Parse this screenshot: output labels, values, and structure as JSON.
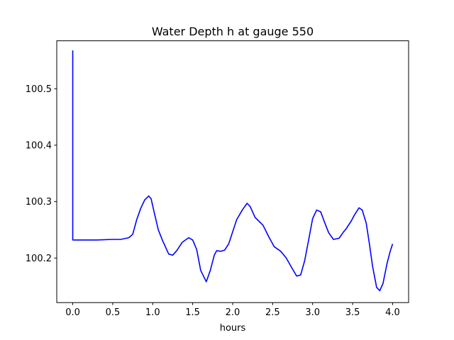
{
  "chart_data": {
    "type": "line",
    "title": "Water Depth h at gauge 550",
    "xlabel": "hours",
    "ylabel": "",
    "xlim": [
      -0.2,
      4.2
    ],
    "ylim": [
      100.121,
      100.585
    ],
    "xticks": [
      0.0,
      0.5,
      1.0,
      1.5,
      2.0,
      2.5,
      3.0,
      3.5,
      4.0
    ],
    "xtick_labels": [
      "0.0",
      "0.5",
      "1.0",
      "1.5",
      "2.0",
      "2.5",
      "3.0",
      "3.5",
      "4.0"
    ],
    "yticks": [
      100.2,
      100.3,
      100.4,
      100.5
    ],
    "ytick_labels": [
      "100.2",
      "100.3",
      "100.4",
      "100.5"
    ],
    "grid": false,
    "line_color": "#0000ff",
    "series": [
      {
        "x": [
          0.0,
          0.0,
          0.1,
          0.3,
          0.5,
          0.6,
          0.7,
          0.75,
          0.8,
          0.85,
          0.9,
          0.95,
          0.98,
          1.02,
          1.07,
          1.12,
          1.2,
          1.25,
          1.3,
          1.37,
          1.45,
          1.5,
          1.55,
          1.6,
          1.67,
          1.72,
          1.77,
          1.8,
          1.85,
          1.9,
          1.95,
          2.05,
          2.12,
          2.18,
          2.22,
          2.28,
          2.33,
          2.38,
          2.45,
          2.52,
          2.6,
          2.67,
          2.73,
          2.8,
          2.85,
          2.9,
          2.95,
          3.0,
          3.05,
          3.1,
          3.15,
          3.2,
          3.26,
          3.33,
          3.38,
          3.42,
          3.48,
          3.53,
          3.58,
          3.62,
          3.67,
          3.71,
          3.75,
          3.8,
          3.84,
          3.88,
          3.93,
          3.97,
          4.0
        ],
        "y": [
          100.568,
          100.232,
          100.232,
          100.232,
          100.233,
          100.233,
          100.236,
          100.242,
          100.268,
          100.288,
          100.303,
          100.31,
          100.305,
          100.28,
          100.25,
          100.232,
          100.207,
          100.205,
          100.213,
          100.228,
          100.236,
          100.232,
          100.215,
          100.178,
          100.158,
          100.178,
          100.205,
          100.213,
          100.212,
          100.214,
          100.225,
          100.268,
          100.285,
          100.297,
          100.291,
          100.272,
          100.265,
          100.258,
          100.238,
          100.22,
          100.212,
          100.2,
          100.185,
          100.168,
          100.17,
          100.195,
          100.232,
          100.27,
          100.285,
          100.282,
          100.263,
          100.245,
          100.233,
          100.235,
          100.245,
          100.252,
          100.265,
          100.278,
          100.289,
          100.285,
          100.262,
          100.225,
          100.185,
          100.148,
          100.142,
          100.155,
          100.19,
          100.212,
          100.225
        ]
      }
    ]
  }
}
